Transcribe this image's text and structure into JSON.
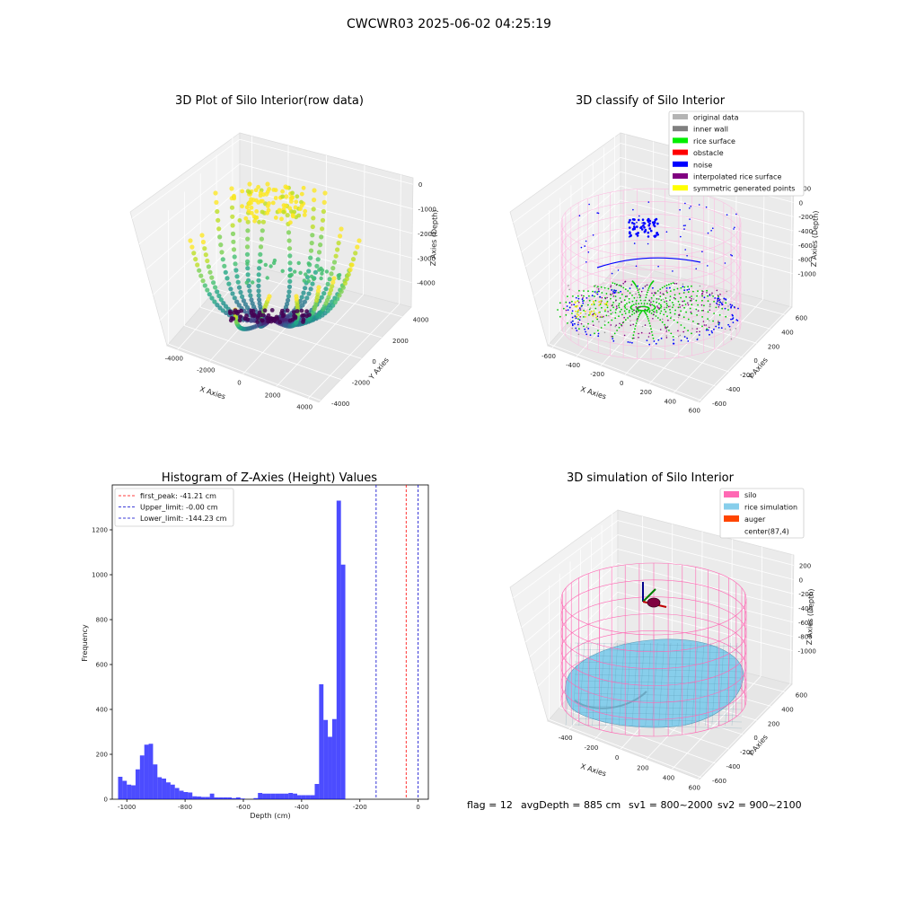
{
  "suptitle": "CWCWR03 2025-06-02 04:25:19",
  "chart_data": [
    {
      "type": "scatter",
      "subtype": "3d",
      "title": "3D Plot of Silo Interior(row data)",
      "xlabel": "X Axies",
      "ylabel": "Y Axies",
      "zlabel": "Z Axies (Depth)",
      "x_ticks": [
        "-4000",
        "-2000",
        "0",
        "2000",
        "4000"
      ],
      "y_ticks": [
        "-4000",
        "-2000",
        "0",
        "2000",
        "4000"
      ],
      "z_ticks": [
        "0",
        "-1000",
        "-2000",
        "-3000",
        "-4000"
      ],
      "xlim": [
        -4500,
        4500
      ],
      "ylim": [
        -4500,
        4500
      ],
      "zlim": [
        -4800,
        100
      ],
      "colormap": "viridis",
      "grid": true
    },
    {
      "type": "scatter",
      "subtype": "3d",
      "title": "3D classify of Silo Interior",
      "xlabel": "X Axies",
      "ylabel": "Y Axies",
      "zlabel": "Z Axies (Depth)",
      "x_ticks": [
        "-600",
        "-400",
        "-200",
        "0",
        "200",
        "400",
        "600"
      ],
      "y_ticks": [
        "-600",
        "-400",
        "-200",
        "0",
        "200",
        "400",
        "600"
      ],
      "z_ticks": [
        "200",
        "0",
        "-200",
        "-400",
        "-600",
        "-800",
        "-1000"
      ],
      "legend_position": "top-right",
      "legend": [
        {
          "label": "original data",
          "color": "#b4b4b4"
        },
        {
          "label": "inner wall",
          "color": "#808080"
        },
        {
          "label": "rice surface",
          "color": "#00ee00"
        },
        {
          "label": "obstacle",
          "color": "#ff0000"
        },
        {
          "label": "noise",
          "color": "#0000ff"
        },
        {
          "label": "interpolated rice surface",
          "color": "#800080"
        },
        {
          "label": "symmetric generated points",
          "color": "#ffff00"
        }
      ],
      "grid": true
    },
    {
      "type": "bar",
      "subtype": "histogram",
      "title": "Histogram of Z-Axies (Height) Values",
      "xlabel": "Depth (cm)",
      "ylabel": "Frequency",
      "xlim": [
        -1050,
        35
      ],
      "ylim": [
        0,
        1400
      ],
      "x_ticks": [
        -1000,
        -800,
        -600,
        -400,
        -200,
        0
      ],
      "y_ticks": [
        0,
        200,
        400,
        600,
        800,
        1000,
        1200
      ],
      "bin_width": 15,
      "bin_start": -1030,
      "values": [
        100,
        82,
        65,
        62,
        133,
        195,
        243,
        247,
        155,
        98,
        92,
        75,
        65,
        50,
        38,
        32,
        30,
        13,
        12,
        10,
        10,
        25,
        8,
        8,
        8,
        8,
        5,
        8,
        3,
        0,
        0,
        5,
        28,
        25,
        25,
        25,
        25,
        25,
        25,
        28,
        25,
        18,
        18,
        18,
        18,
        68,
        512,
        353,
        278,
        357,
        1330,
        1045
      ],
      "bar_color": "#0000ff",
      "bar_alpha": 0.7,
      "vlines": [
        {
          "label": "first_peak: -41.21 cm",
          "x": -41.21,
          "color": "#ff0000"
        },
        {
          "label": "Upper_limit: -0.00 cm",
          "x": -0.0,
          "color": "#0000cc"
        },
        {
          "label": "Lower_limit: -144.23 cm",
          "x": -144.23,
          "color": "#0000cc"
        }
      ],
      "legend_position": "top-left",
      "grid": false
    },
    {
      "type": "surface",
      "subtype": "3d",
      "title": "3D simulation of Silo Interior",
      "xlabel": "X Axies",
      "ylabel": "Y Axies",
      "zlabel": "Z Axies (Depth)",
      "x_ticks": [
        "-400",
        "-200",
        "0",
        "200",
        "400",
        "600"
      ],
      "y_ticks": [
        "-600",
        "-400",
        "-200",
        "0",
        "200",
        "400",
        "600"
      ],
      "z_ticks": [
        "200",
        "0",
        "-200",
        "-400",
        "-600",
        "-800",
        "-1000"
      ],
      "legend_position": "top-right",
      "legend": [
        {
          "label": "silo",
          "color": "#ff69b4"
        },
        {
          "label": "rice simulation",
          "color": "#87ceeb"
        },
        {
          "label": "auger",
          "color": "#ff4500"
        },
        {
          "label": "center(87,4)",
          "color": ""
        }
      ],
      "grid": true
    }
  ],
  "footer": {
    "flag": "flag = 12",
    "avg_depth": "avgDepth = 885 cm",
    "sv1": "sv1 = 800~2000",
    "sv2": "sv2 = 900~2100"
  }
}
